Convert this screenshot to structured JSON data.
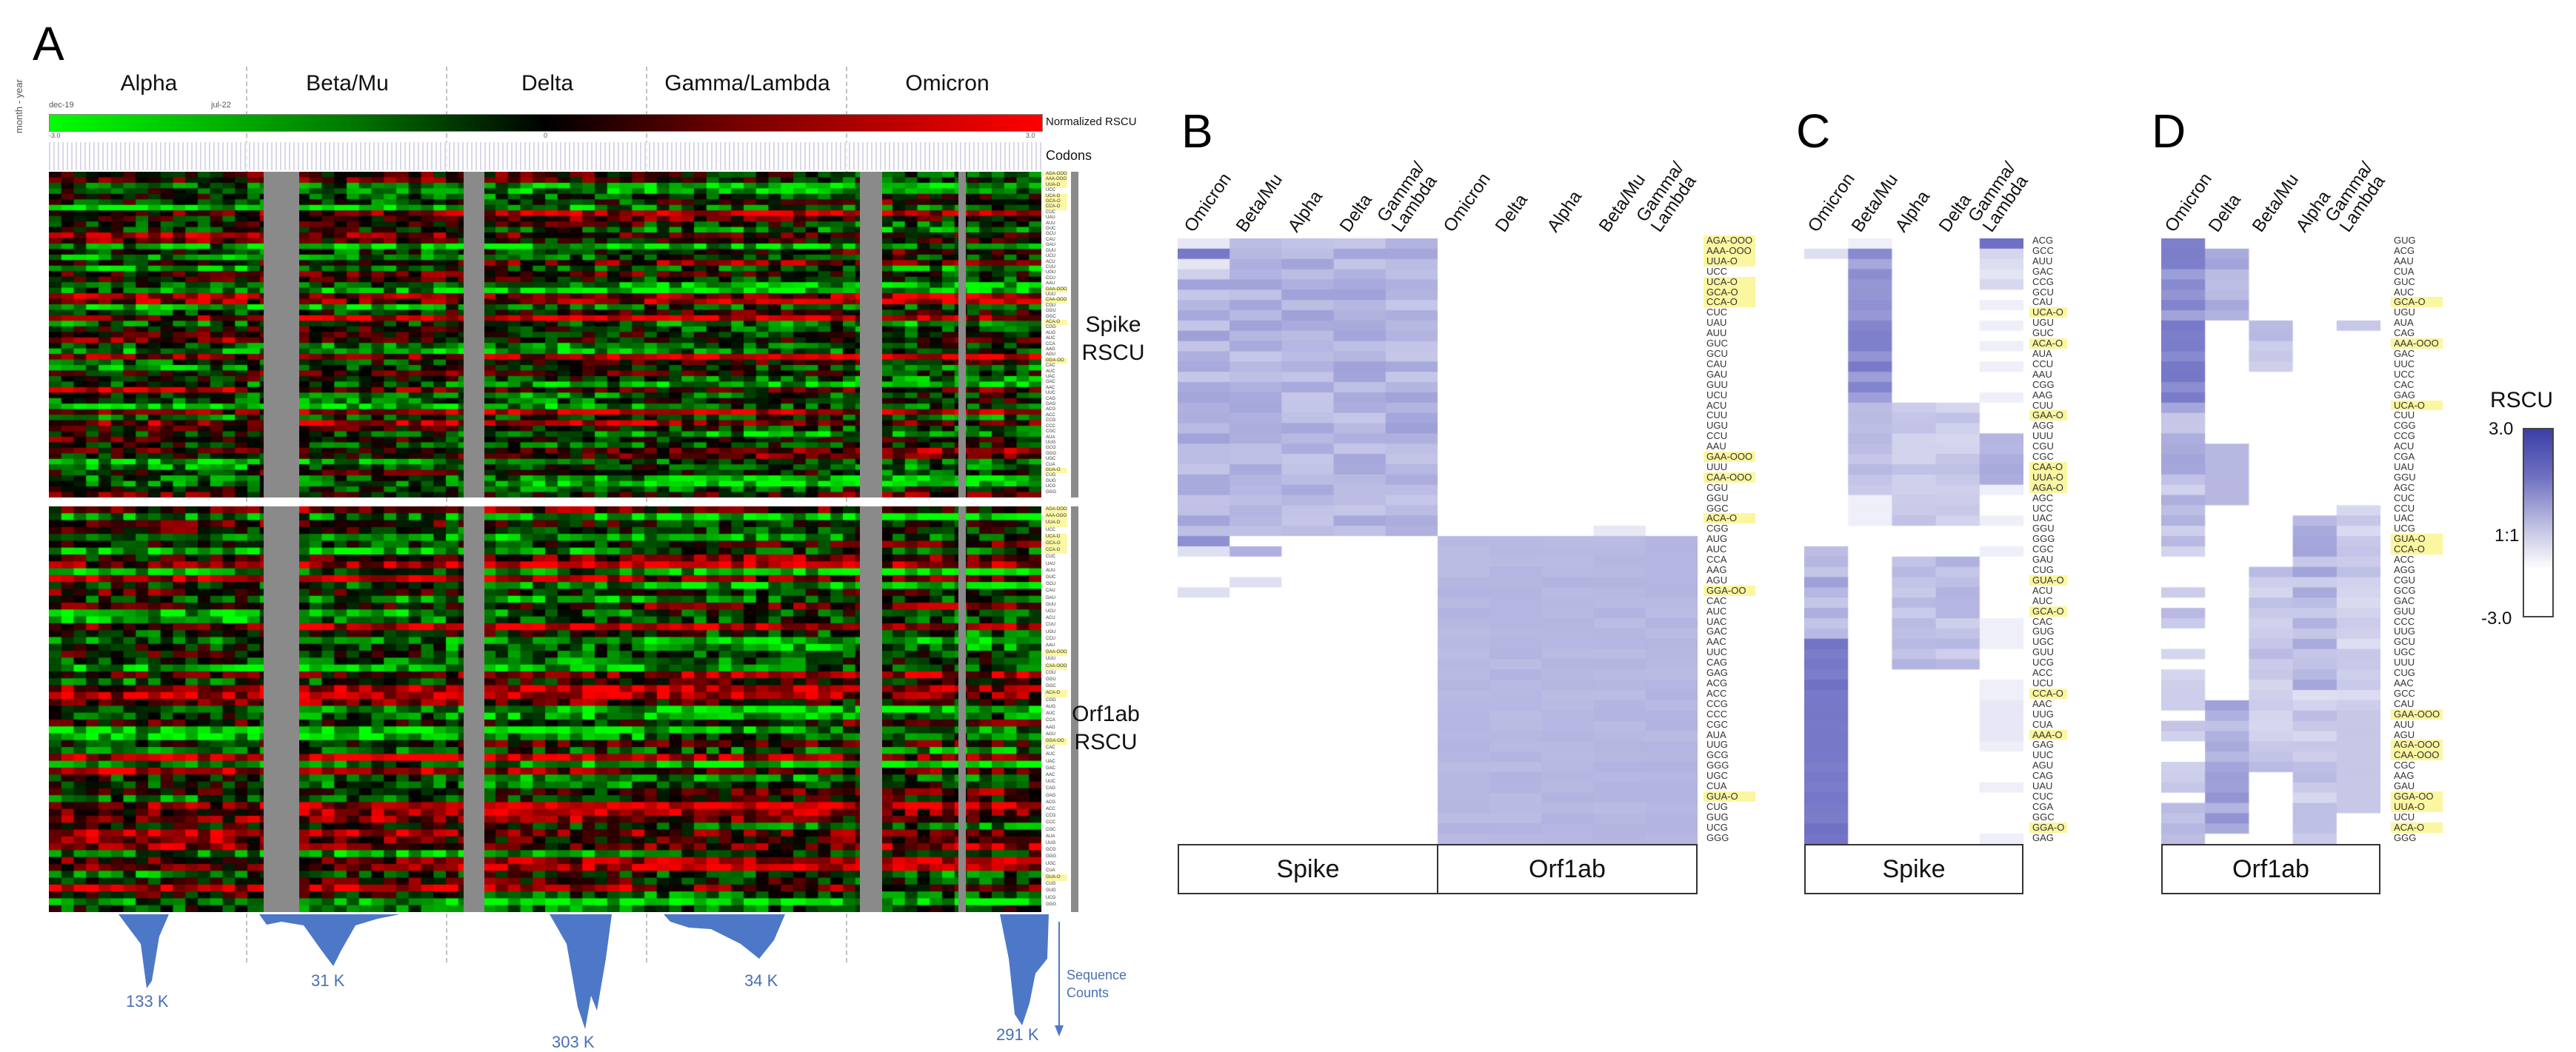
{
  "panels": {
    "A": {
      "letter": "A",
      "variants": [
        "Alpha",
        "Beta/Mu",
        "Delta",
        "Gamma/Lambda",
        "Omicron"
      ],
      "time_start": "dec-19",
      "time_end": "jul-22",
      "axis_label": "month - year",
      "colorbar_label": "Normalized RSCU",
      "colorbar_min": "-3.0",
      "colorbar_mid": "0",
      "colorbar_max": "3.0",
      "codons_label": "Codons",
      "spike_label": "Spike RSCU",
      "orf_label": "Orf1ab RSCU",
      "sequence_counts_label": "Sequence Counts",
      "counts": [
        "133 K",
        "31 K",
        "303 K",
        "34 K",
        "291 K"
      ]
    },
    "B": {
      "letter": "B",
      "spike_columns": [
        "Omicron",
        "Beta/Mu",
        "Alpha",
        "Delta",
        "Gamma/ Lambda"
      ],
      "orf_columns": [
        "Omicron",
        "Delta",
        "Alpha",
        "Beta/Mu",
        "Gamma/ Lambda"
      ],
      "gene_boxes": [
        "Spike",
        "Orf1ab"
      ]
    },
    "C": {
      "letter": "C",
      "columns": [
        "Omicron",
        "Beta/Mu",
        "Alpha",
        "Delta",
        "Gamma/ Lambda"
      ],
      "gene_box": "Spike"
    },
    "D": {
      "letter": "D",
      "columns": [
        "Omicron",
        "Delta",
        "Beta/Mu",
        "Alpha",
        "Gamma/ Lambda"
      ],
      "gene_box": "Orf1ab"
    },
    "legend": {
      "title": "RSCU",
      "max": "3.0",
      "mid": "1:1",
      "min": "-3.0"
    }
  },
  "chart_data": [
    {
      "type": "heatmap",
      "title": "A",
      "xlabel": "month - year (dec-19 to jul-22) per variant",
      "ylabel": "Codons",
      "groups": [
        "Alpha",
        "Beta/Mu",
        "Delta",
        "Gamma/Lambda",
        "Omicron"
      ],
      "row_blocks": [
        "Spike RSCU",
        "Orf1ab RSCU"
      ],
      "colorscale": {
        "label": "Normalized RSCU",
        "min": -3.0,
        "max": 3.0,
        "colors": [
          "#00ff00",
          "#000000",
          "#ff0000"
        ]
      },
      "sequence_counts": {
        "Alpha": "133 K",
        "Beta/Mu": "31 K",
        "Delta": "303 K",
        "Gamma/Lambda": "34 K",
        "Omicron": "291 K"
      }
    },
    {
      "type": "heatmap",
      "title": "B",
      "columns_spike": [
        "Omicron",
        "Beta/Mu",
        "Alpha",
        "Delta",
        "Gamma/Lambda"
      ],
      "columns_orf1ab": [
        "Omicron",
        "Delta",
        "Alpha",
        "Beta/Mu",
        "Gamma/Lambda"
      ],
      "rows": [
        "AGA-OOO",
        "AAA-OOO",
        "UUA-O",
        "UCC",
        "UCA-O",
        "GCA-O",
        "CCA-O",
        "CUC",
        "UAU",
        "AUU",
        "GUC",
        "GCU",
        "CAU",
        "GAU",
        "GUU",
        "UCU",
        "ACU",
        "CUU",
        "UGU",
        "CCU",
        "AAU",
        "GAA-OOO",
        "UUU",
        "CAA-OOO",
        "CGU",
        "GGU",
        "GGC",
        "ACA-O",
        "CGG",
        "AUG",
        "AUC",
        "CCA",
        "AAG",
        "AGU",
        "GGA-OO",
        "CAC",
        "AUC",
        "UAC",
        "GAC",
        "AAC",
        "UUC",
        "CAG",
        "GAG",
        "ACG",
        "ACC",
        "CCG",
        "CCC",
        "CGC",
        "AUA",
        "UUG",
        "GCG",
        "GGG",
        "UGC",
        "CUA",
        "GUA-O",
        "CUG",
        "GUG",
        "UCG",
        "GGG"
      ],
      "colorscale": {
        "label": "RSCU",
        "min": -3.0,
        "mid": "1:1",
        "max": 3.0
      }
    },
    {
      "type": "heatmap",
      "title": "C",
      "columns": [
        "Omicron",
        "Beta/Mu",
        "Alpha",
        "Delta",
        "Gamma/Lambda"
      ],
      "rows": [
        "ACG",
        "GCC",
        "AUU",
        "GAC",
        "CCG",
        "GCU",
        "CAU",
        "UCA-O",
        "UGU",
        "GUC",
        "ACA-O",
        "AUA",
        "CCU",
        "AAU",
        "CGG",
        "AAG",
        "CUU",
        "GAA-O",
        "AGG",
        "UUU",
        "CGU",
        "CGC",
        "CAA-O",
        "UUA-O",
        "AGA-O",
        "AGC",
        "UCC",
        "UAC",
        "GGU",
        "GGG",
        "CGC",
        "GAU",
        "CUG",
        "GUA-O",
        "ACU",
        "AUC",
        "GCA-O",
        "CAC",
        "GUG",
        "UGC",
        "GUU",
        "UCG",
        "ACC",
        "UCU",
        "CCA-O",
        "AAC",
        "UUG",
        "CUA",
        "AAA-O",
        "GAG",
        "UUC",
        "AGU",
        "CAG",
        "UAU",
        "CUC",
        "CGA",
        "GGC",
        "GGA-O",
        "GAG"
      ],
      "gene": "Spike"
    },
    {
      "type": "heatmap",
      "title": "D",
      "columns": [
        "Omicron",
        "Delta",
        "Beta/Mu",
        "Alpha",
        "Gamma/Lambda"
      ],
      "rows": [
        "GUG",
        "ACG",
        "AAU",
        "CUA",
        "GUC",
        "AUC",
        "GCA-O",
        "UGU",
        "AUA",
        "CAG",
        "AAA-OOO",
        "GAC",
        "UUC",
        "UCC",
        "CAC",
        "GAG",
        "UCA-O",
        "CUU",
        "CGG",
        "CCG",
        "ACU",
        "CGA",
        "UAU",
        "GGU",
        "AGC",
        "CUC",
        "CCU",
        "UAC",
        "UCG",
        "GUA-O",
        "CCA-O",
        "ACC",
        "AGG",
        "CGU",
        "GCG",
        "GAC",
        "GUU",
        "CCC",
        "UUG",
        "GCU",
        "UGC",
        "UUU",
        "CUG",
        "AAC",
        "GCC",
        "CAU",
        "GAA-OOO",
        "AUU",
        "AGU",
        "AGA-OOO",
        "CAA-OOO",
        "CGC",
        "AAG",
        "GAU",
        "GGA-OO",
        "UUA-O",
        "UCU",
        "ACA-O",
        "GGG"
      ],
      "gene": "Orf1ab"
    }
  ]
}
